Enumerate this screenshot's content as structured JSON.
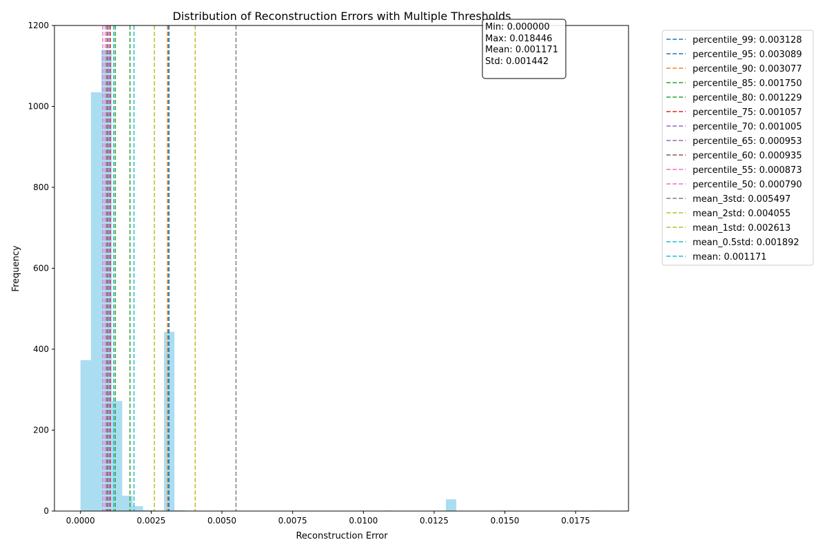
{
  "chart_data": {
    "type": "bar",
    "title": "Distribution of Reconstruction Errors with Multiple Thresholds",
    "xlabel": "Reconstruction Error",
    "ylabel": "Frequency",
    "xlim": [
      -0.00092,
      0.01937
    ],
    "ylim": [
      0,
      1200
    ],
    "xticks": [
      "0.0000",
      "0.0025",
      "0.0050",
      "0.0075",
      "0.0100",
      "0.0125",
      "0.0150",
      "0.0175"
    ],
    "xtick_values": [
      0,
      0.0025,
      0.005,
      0.0075,
      0.01,
      0.0125,
      0.015,
      0.0175
    ],
    "yticks": [
      "0",
      "200",
      "400",
      "600",
      "800",
      "1000",
      "1200"
    ],
    "ytick_values": [
      0,
      200,
      400,
      600,
      800,
      1000,
      1200
    ],
    "grid": false,
    "legend_position": "outside-right",
    "histogram": {
      "color": "#87ceeb",
      "bin_width": 0.000369,
      "bins": [
        {
          "x": 0.0,
          "count": 373
        },
        {
          "x": 0.000369,
          "count": 1035
        },
        {
          "x": 0.000738,
          "count": 1140
        },
        {
          "x": 0.001107,
          "count": 272
        },
        {
          "x": 0.001476,
          "count": 38
        },
        {
          "x": 0.001845,
          "count": 12
        },
        {
          "x": 0.002214,
          "count": 2
        },
        {
          "x": 0.002583,
          "count": 1
        },
        {
          "x": 0.002952,
          "count": 443
        },
        {
          "x": 0.003321,
          "count": 2
        },
        {
          "x": 0.010701,
          "count": 1
        },
        {
          "x": 0.012915,
          "count": 29
        },
        {
          "x": 0.018081,
          "count": 1
        }
      ]
    },
    "thresholds": [
      {
        "label": "percentile_99: 0.003128",
        "value": 0.003128,
        "color": "#1f77b4"
      },
      {
        "label": "percentile_95: 0.003089",
        "value": 0.003089,
        "color": "#1f77b4"
      },
      {
        "label": "percentile_90: 0.003077",
        "value": 0.003077,
        "color": "#ff7f0e"
      },
      {
        "label": "percentile_85: 0.001750",
        "value": 0.00175,
        "color": "#2ca02c"
      },
      {
        "label": "percentile_80: 0.001229",
        "value": 0.001229,
        "color": "#2ca02c"
      },
      {
        "label": "percentile_75: 0.001057",
        "value": 0.001057,
        "color": "#d62728"
      },
      {
        "label": "percentile_70: 0.001005",
        "value": 0.001005,
        "color": "#9467bd"
      },
      {
        "label": "percentile_65: 0.000953",
        "value": 0.000953,
        "color": "#9467bd"
      },
      {
        "label": "percentile_60: 0.000935",
        "value": 0.000935,
        "color": "#8c564b"
      },
      {
        "label": "percentile_55: 0.000873",
        "value": 0.000873,
        "color": "#e377c2"
      },
      {
        "label": "percentile_50: 0.000790",
        "value": 0.00079,
        "color": "#e377c2"
      },
      {
        "label": "mean_3std: 0.005497",
        "value": 0.005497,
        "color": "#7f7f7f"
      },
      {
        "label": "mean_2std: 0.004055",
        "value": 0.004055,
        "color": "#bcbd22"
      },
      {
        "label": "mean_1std: 0.002613",
        "value": 0.002613,
        "color": "#bcbd22"
      },
      {
        "label": "mean_0.5std: 0.001892",
        "value": 0.001892,
        "color": "#17becf"
      },
      {
        "label": "mean: 0.001171",
        "value": 0.001171,
        "color": "#17becf"
      }
    ],
    "stats_box": [
      "Min: 0.000000",
      "Max: 0.018446",
      "Mean: 0.001171",
      "Std: 0.001442"
    ]
  }
}
